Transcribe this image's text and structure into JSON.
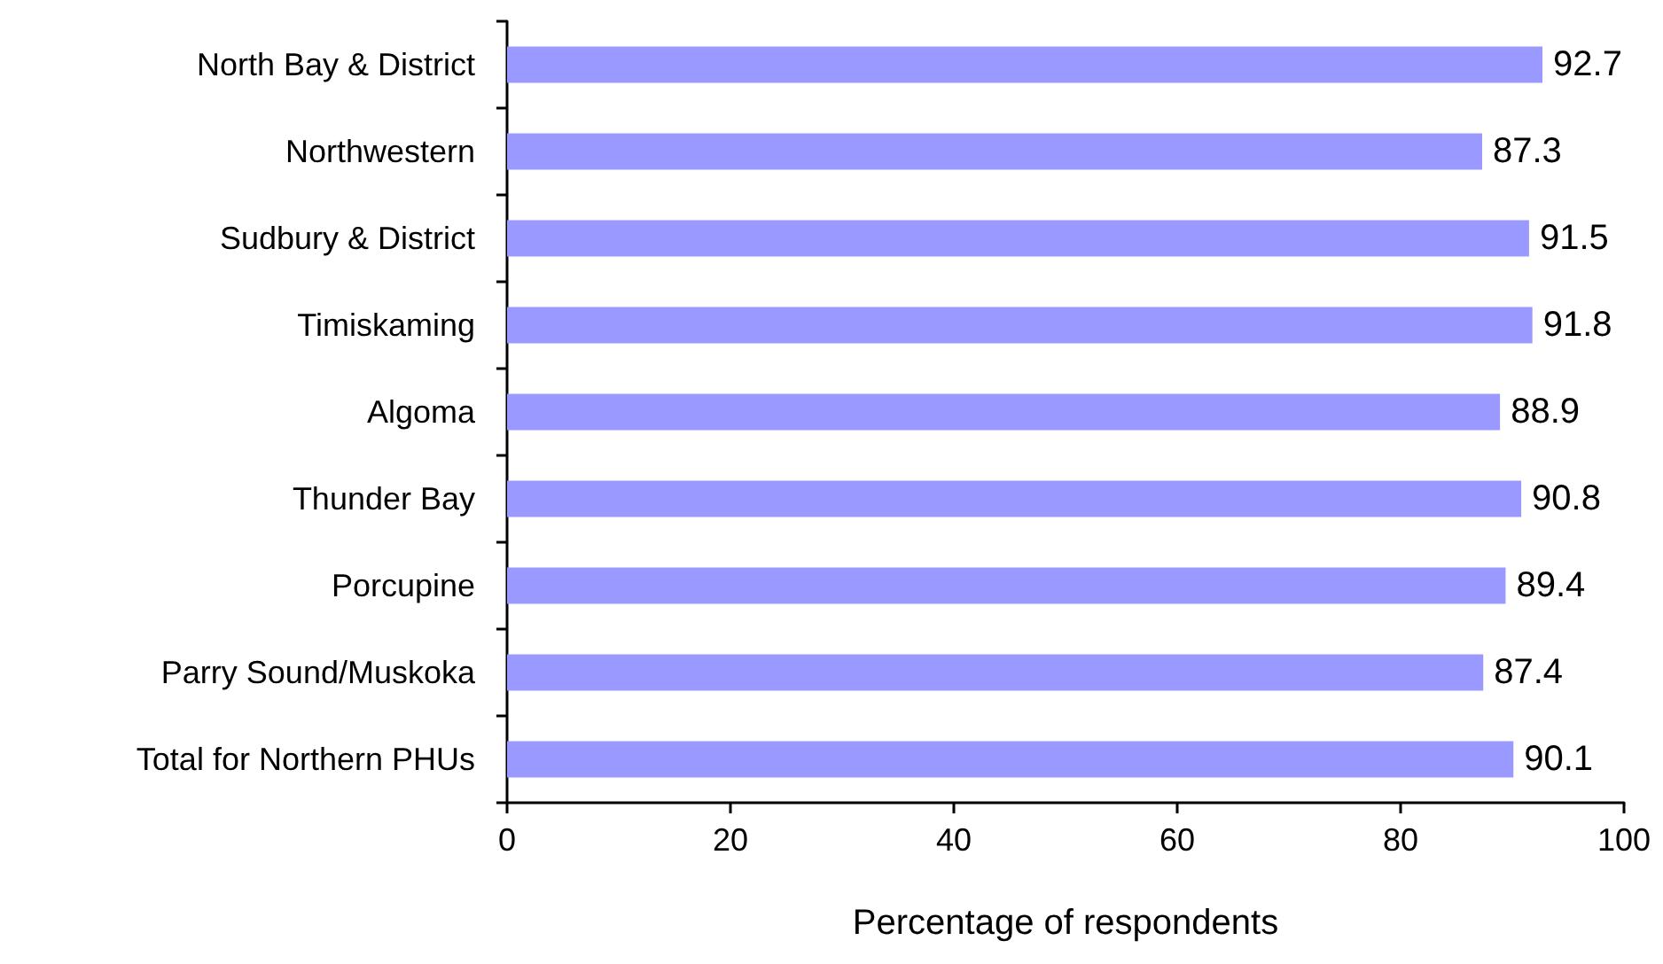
{
  "chart_data": {
    "type": "bar",
    "orientation": "horizontal",
    "xlabel": "Percentage of respondents",
    "categories": [
      "North Bay & District",
      "Northwestern",
      "Sudbury & District",
      "Timiskaming",
      "Algoma",
      "Thunder Bay",
      "Porcupine",
      "Parry Sound/Muskoka",
      "Total for Northern PHUs"
    ],
    "values": [
      92.7,
      87.3,
      91.5,
      91.8,
      88.9,
      90.8,
      89.4,
      87.4,
      90.1
    ],
    "color": "#9999ff",
    "xlim": [
      0,
      100
    ],
    "xticks": [
      0,
      20,
      40,
      60,
      80,
      100
    ],
    "data_labels": true,
    "grid": false
  }
}
